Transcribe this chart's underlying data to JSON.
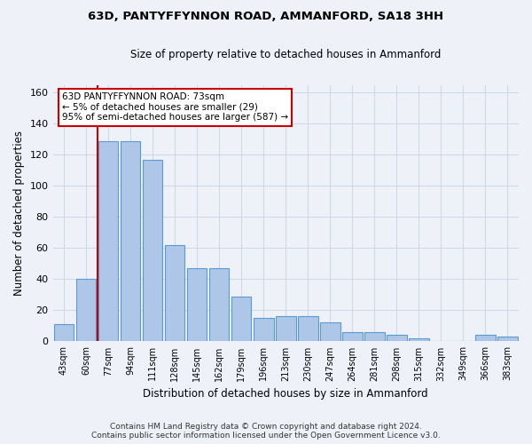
{
  "title": "63D, PANTYFFYNNON ROAD, AMMANFORD, SA18 3HH",
  "subtitle": "Size of property relative to detached houses in Ammanford",
  "xlabel": "Distribution of detached houses by size in Ammanford",
  "ylabel": "Number of detached properties",
  "categories": [
    "43sqm",
    "60sqm",
    "77sqm",
    "94sqm",
    "111sqm",
    "128sqm",
    "145sqm",
    "162sqm",
    "179sqm",
    "196sqm",
    "213sqm",
    "230sqm",
    "247sqm",
    "264sqm",
    "281sqm",
    "298sqm",
    "315sqm",
    "332sqm",
    "349sqm",
    "366sqm",
    "383sqm"
  ],
  "values": [
    11,
    40,
    129,
    129,
    117,
    62,
    47,
    47,
    29,
    15,
    16,
    16,
    12,
    6,
    6,
    4,
    2,
    0,
    0,
    4,
    3
  ],
  "bar_color": "#aec6e8",
  "bar_edge_color": "#5b9bd5",
  "property_line_label": "63D PANTYFFYNNON ROAD: 73sqm",
  "annotation_line1": "← 5% of detached houses are smaller (29)",
  "annotation_line2": "95% of semi-detached houses are larger (587) →",
  "annotation_box_color": "#ffffff",
  "annotation_box_edge": "#cc0000",
  "red_line_color": "#cc0000",
  "ylim": [
    0,
    165
  ],
  "yticks": [
    0,
    20,
    40,
    60,
    80,
    100,
    120,
    140,
    160
  ],
  "grid_color": "#d0d8e8",
  "bg_color": "#eef2f8",
  "footer1": "Contains HM Land Registry data © Crown copyright and database right 2024.",
  "footer2": "Contains public sector information licensed under the Open Government Licence v3.0."
}
